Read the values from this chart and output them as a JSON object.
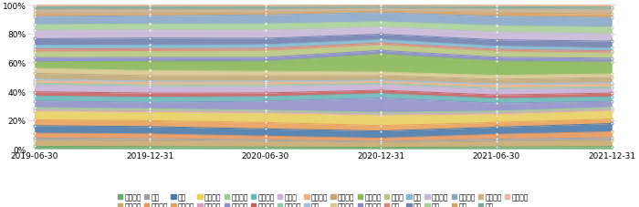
{
  "dates": [
    "2019-06-30",
    "2019-12-31",
    "2020-06-30",
    "2020-12-31",
    "2021-06-30",
    "2021-12-31"
  ],
  "categories": [
    "农林牧渔",
    "基础化工",
    "钢铁",
    "有色金属",
    "电子",
    "家用电器",
    "食品饮料",
    "纺织服饰",
    "轻工制造",
    "医药生物",
    "公用事业",
    "交通运输",
    "房地产",
    "商贸零售",
    "社会服务",
    "综合",
    "建筑材料",
    "建筑装饰",
    "电力设备",
    "国防军工",
    "计算机",
    "传媒",
    "通信",
    "银行",
    "非银金融",
    "汽车",
    "机械设备",
    "煤炭",
    "石油石化",
    "环保",
    "美容护理"
  ],
  "colors": [
    "#6aaa6a",
    "#c8a96e",
    "#a0a0a0",
    "#e8965a",
    "#4a7aaa",
    "#e8a05a",
    "#e8d060",
    "#d4a0c0",
    "#a0c890",
    "#9090c8",
    "#68b8b8",
    "#c86060",
    "#c8b0d8",
    "#90c8b0",
    "#f0b080",
    "#a0c0e0",
    "#c0a878",
    "#d8c890",
    "#88b858",
    "#8888c8",
    "#b8c880",
    "#d88878",
    "#80b8d0",
    "#7080b0",
    "#c8b8d8",
    "#a8d098",
    "#88a8c8",
    "#d8a060",
    "#c8b090",
    "#80a898",
    "#e8b898"
  ],
  "data_pct": {
    "农林牧渔": [
      1.5,
      1.2,
      1.0,
      0.8,
      1.2,
      1.5
    ],
    "基础化工": [
      3.5,
      3.2,
      3.0,
      2.5,
      3.5,
      4.0
    ],
    "钢铁": [
      1.5,
      1.2,
      1.0,
      0.8,
      1.5,
      2.0
    ],
    "有色金属": [
      3.0,
      2.5,
      2.0,
      1.8,
      3.0,
      4.0
    ],
    "电子": [
      4.5,
      4.0,
      4.0,
      4.0,
      4.5,
      5.5
    ],
    "家用电器": [
      3.5,
      3.2,
      3.5,
      3.0,
      3.0,
      3.0
    ],
    "食品饮料": [
      5.0,
      4.5,
      5.0,
      5.5,
      5.0,
      5.5
    ],
    "纺织服饰": [
      1.0,
      0.8,
      0.8,
      0.8,
      1.0,
      1.0
    ],
    "轻工制造": [
      1.5,
      1.2,
      1.0,
      1.0,
      1.2,
      1.5
    ],
    "医药生物": [
      4.0,
      3.5,
      5.0,
      8.0,
      5.0,
      4.0
    ],
    "公用事业": [
      3.0,
      2.8,
      2.5,
      2.5,
      3.0,
      3.0
    ],
    "交通运输": [
      2.5,
      2.2,
      2.0,
      1.8,
      2.2,
      2.5
    ],
    "房地产": [
      4.0,
      3.5,
      3.5,
      3.0,
      3.5,
      3.0
    ],
    "商贸零售": [
      1.2,
      1.0,
      1.0,
      0.8,
      1.0,
      1.2
    ],
    "社会服务": [
      1.5,
      1.2,
      1.2,
      1.0,
      1.5,
      1.8
    ],
    "综合": [
      1.0,
      0.8,
      0.8,
      0.8,
      1.0,
      1.0
    ],
    "建筑材料": [
      3.5,
      3.0,
      3.0,
      2.5,
      3.0,
      3.5
    ],
    "建筑装饰": [
      3.0,
      2.8,
      2.5,
      2.0,
      2.5,
      2.5
    ],
    "电力设备": [
      4.0,
      5.0,
      5.5,
      10.0,
      9.0,
      8.0
    ],
    "国防军工": [
      2.5,
      2.2,
      2.2,
      2.0,
      2.5,
      2.5
    ],
    "计算机": [
      3.5,
      3.2,
      3.5,
      3.0,
      3.5,
      3.5
    ],
    "传媒": [
      1.8,
      1.5,
      1.5,
      1.2,
      1.5,
      1.5
    ],
    "通信": [
      2.2,
      2.0,
      2.0,
      1.8,
      2.0,
      2.0
    ],
    "银行": [
      4.0,
      3.8,
      3.5,
      3.0,
      4.0,
      4.5
    ],
    "非银金融": [
      5.0,
      4.5,
      4.5,
      4.0,
      5.0,
      5.0
    ],
    "汽车": [
      3.5,
      3.2,
      3.5,
      3.0,
      4.0,
      4.5
    ],
    "机械设备": [
      5.0,
      4.5,
      5.0,
      5.0,
      6.0,
      6.5
    ],
    "煤炭": [
      1.5,
      1.2,
      1.0,
      0.8,
      2.0,
      2.5
    ],
    "石油石化": [
      2.5,
      2.2,
      2.0,
      1.5,
      2.5,
      3.0
    ],
    "环保": [
      1.8,
      1.5,
      1.5,
      1.2,
      1.5,
      1.5
    ],
    "美容护理": [
      1.2,
      1.0,
      1.0,
      0.8,
      1.2,
      1.5
    ]
  },
  "background_color": "#ffffff",
  "grid_color": "#d0d0d0",
  "ylim": [
    0,
    100
  ],
  "tick_fontsize": 6.5,
  "legend_fontsize": 5.5
}
